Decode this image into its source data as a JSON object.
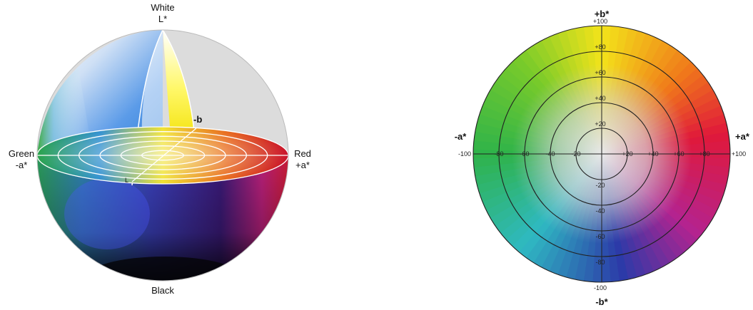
{
  "sphere": {
    "labels": {
      "top_line1": "White",
      "top_line2": "L*",
      "bottom": "Black",
      "left_line1": "Green",
      "left_line2": "-a*",
      "right_line1": "Red",
      "right_line2": "+a*",
      "inner_b": "-b",
      "inner_l": "L"
    },
    "ring_count": 6
  },
  "wheel": {
    "axis_labels": {
      "top": "+b*",
      "bottom": "-b*",
      "left": "-a*",
      "right": "+a*"
    },
    "range": [
      -100,
      100
    ],
    "rings": [
      20,
      40,
      60,
      80,
      100
    ],
    "vertical_ticks": [
      "+100",
      "+80",
      "+60",
      "+40",
      "+20",
      "-20",
      "-40",
      "-60",
      "-80",
      "-100"
    ],
    "horizontal_ticks_left": [
      "-100",
      "-80",
      "-60",
      "-40",
      "-20"
    ],
    "horizontal_ticks_right": [
      "+20",
      "+40",
      "+60",
      "+80",
      "+100"
    ],
    "colors": {
      "green": "#2fb34a",
      "yellow": "#f3e31a",
      "red": "#e0193a",
      "magenta": "#b4238f",
      "blue": "#2c3aa8",
      "cyan": "#2fb9c2",
      "center": "#dcdcdc"
    }
  }
}
